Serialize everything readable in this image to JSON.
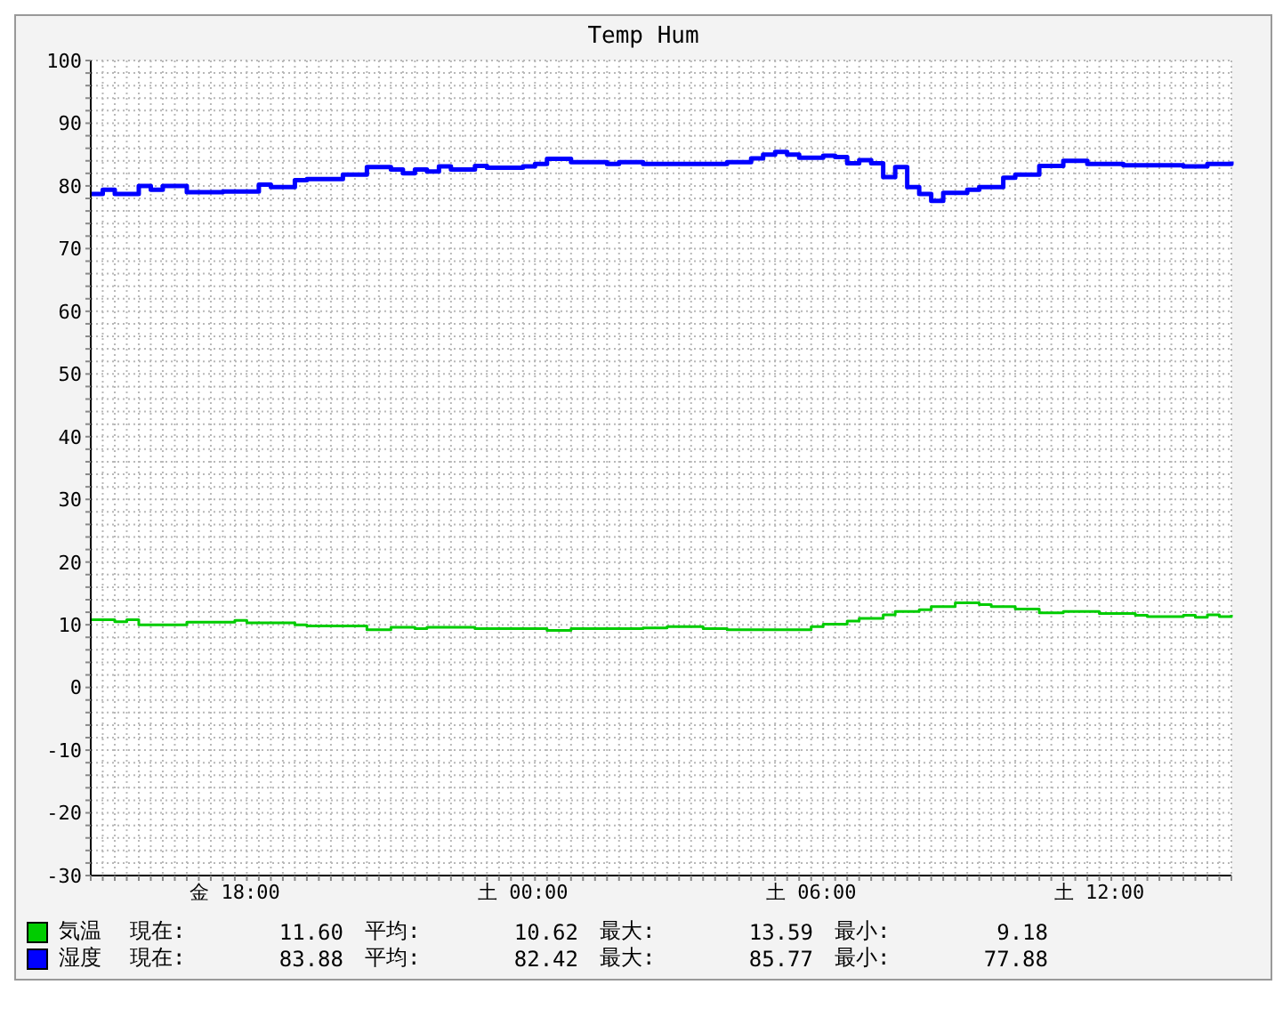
{
  "chart_data": {
    "type": "step",
    "title": "Temp Hum",
    "legend": "bottom",
    "grid": true,
    "categories": [
      null,
      null,
      null,
      null,
      null,
      null,
      null,
      null,
      null,
      null,
      null,
      null,
      "金 18:00",
      null,
      null,
      null,
      null,
      null,
      null,
      null,
      null,
      null,
      null,
      null,
      null,
      null,
      null,
      null,
      null,
      null,
      null,
      null,
      null,
      null,
      null,
      null,
      "土 00:00",
      null,
      null,
      null,
      null,
      null,
      null,
      null,
      null,
      null,
      null,
      null,
      null,
      null,
      null,
      null,
      null,
      null,
      null,
      null,
      null,
      null,
      null,
      null,
      "土 06:00",
      null,
      null,
      null,
      null,
      null,
      null,
      null,
      null,
      null,
      null,
      null,
      null,
      null,
      null,
      null,
      null,
      null,
      null,
      null,
      null,
      null,
      null,
      null,
      "土 12:00",
      null,
      null,
      null,
      null,
      null,
      null,
      null,
      null,
      null,
      null,
      null
    ],
    "ylim": [
      -30,
      100
    ],
    "yticks": [
      -30,
      {
        "value": -28,
        "label": null
      },
      {
        "value": -26,
        "label": null
      },
      {
        "value": -24,
        "label": null
      },
      {
        "value": -22,
        "label": null
      },
      -20,
      {
        "value": -18,
        "label": null
      },
      {
        "value": -16,
        "label": null
      },
      {
        "value": -14,
        "label": null
      },
      {
        "value": -12,
        "label": null
      },
      -10,
      {
        "value": -8,
        "label": null
      },
      {
        "value": -6,
        "label": null
      },
      {
        "value": -4,
        "label": null
      },
      {
        "value": -2,
        "label": null
      },
      0,
      {
        "value": 2,
        "label": null
      },
      {
        "value": 4,
        "label": null
      },
      {
        "value": 6,
        "label": null
      },
      {
        "value": 8,
        "label": null
      },
      10,
      {
        "value": 12,
        "label": null
      },
      {
        "value": 14,
        "label": null
      },
      {
        "value": 16,
        "label": null
      },
      {
        "value": 18,
        "label": null
      },
      20,
      {
        "value": 22,
        "label": null
      },
      {
        "value": 24,
        "label": null
      },
      {
        "value": 26,
        "label": null
      },
      {
        "value": 28,
        "label": null
      },
      30,
      {
        "value": 32,
        "label": null
      },
      {
        "value": 34,
        "label": null
      },
      {
        "value": 36,
        "label": null
      },
      {
        "value": 38,
        "label": null
      },
      40,
      {
        "value": 42,
        "label": null
      },
      {
        "value": 44,
        "label": null
      },
      {
        "value": 46,
        "label": null
      },
      {
        "value": 48,
        "label": null
      },
      50,
      {
        "value": 52,
        "label": null
      },
      {
        "value": 54,
        "label": null
      },
      {
        "value": 56,
        "label": null
      },
      {
        "value": 58,
        "label": null
      },
      60,
      {
        "value": 62,
        "label": null
      },
      {
        "value": 64,
        "label": null
      },
      {
        "value": 66,
        "label": null
      },
      {
        "value": 68,
        "label": null
      },
      70,
      {
        "value": 72,
        "label": null
      },
      {
        "value": 74,
        "label": null
      },
      {
        "value": 76,
        "label": null
      },
      {
        "value": 78,
        "label": null
      },
      80,
      {
        "value": 82,
        "label": null
      },
      {
        "value": 84,
        "label": null
      },
      {
        "value": 86,
        "label": null
      },
      {
        "value": 88,
        "label": null
      },
      90,
      {
        "value": 92,
        "label": null
      },
      {
        "value": 94,
        "label": null
      },
      {
        "value": 96,
        "label": null
      },
      {
        "value": 98,
        "label": null
      },
      100
    ],
    "series": [
      {
        "name": "気温",
        "color": "#00cc00",
        "values": [
          10.8,
          10.8,
          10.5,
          10.8,
          10.0,
          10.0,
          10.0,
          10.0,
          10.4,
          10.4,
          10.4,
          10.4,
          10.7,
          10.3,
          10.3,
          10.3,
          10.3,
          10.0,
          9.8,
          9.8,
          9.8,
          9.8,
          9.8,
          9.2,
          9.2,
          9.6,
          9.6,
          9.4,
          9.6,
          9.6,
          9.6,
          9.6,
          9.4,
          9.4,
          9.4,
          9.4,
          9.4,
          9.4,
          9.1,
          9.1,
          9.4,
          9.4,
          9.4,
          9.4,
          9.4,
          9.4,
          9.5,
          9.5,
          9.7,
          9.7,
          9.7,
          9.4,
          9.4,
          9.2,
          9.2,
          9.2,
          9.2,
          9.2,
          9.2,
          9.2,
          9.7,
          10.1,
          10.1,
          10.6,
          11.0,
          11.0,
          11.6,
          12.1,
          12.1,
          12.4,
          12.9,
          12.9,
          13.5,
          13.5,
          13.2,
          12.9,
          12.9,
          12.5,
          12.5,
          11.9,
          11.9,
          12.1,
          12.1,
          12.1,
          11.8,
          11.8,
          11.8,
          11.5,
          11.3,
          11.3,
          11.3,
          11.5,
          11.2,
          11.6,
          11.3,
          11.6
        ]
      },
      {
        "name": "湿度",
        "color": "#0000ff",
        "values": [
          78.7,
          79.4,
          78.7,
          78.7,
          80.0,
          79.4,
          80.0,
          80.0,
          79.0,
          79.0,
          79.0,
          79.1,
          79.1,
          79.1,
          80.2,
          79.8,
          79.8,
          80.9,
          81.1,
          81.1,
          81.1,
          81.8,
          81.8,
          83.0,
          83.0,
          82.6,
          82.0,
          82.6,
          82.3,
          83.1,
          82.6,
          82.6,
          83.2,
          82.9,
          82.9,
          82.9,
          83.1,
          83.5,
          84.3,
          84.3,
          83.8,
          83.8,
          83.8,
          83.5,
          83.8,
          83.8,
          83.5,
          83.5,
          83.5,
          83.5,
          83.5,
          83.5,
          83.5,
          83.8,
          83.8,
          84.4,
          85.0,
          85.4,
          85.0,
          84.5,
          84.5,
          84.8,
          84.6,
          83.6,
          84.1,
          83.6,
          81.4,
          83.0,
          79.8,
          78.7,
          77.6,
          78.9,
          78.9,
          79.4,
          79.8,
          79.8,
          81.3,
          81.8,
          81.8,
          83.2,
          83.2,
          84.0,
          84.0,
          83.5,
          83.5,
          83.5,
          83.3,
          83.3,
          83.3,
          83.3,
          83.3,
          83.1,
          83.1,
          83.5,
          83.5,
          83.9
        ]
      }
    ],
    "annotations": [
      "現在:",
      "11.60",
      "平均:",
      "10.62",
      "最大:",
      "13.59",
      "最小:",
      "9.18",
      "現在:",
      "83.88",
      "平均:",
      "82.42",
      "最大:",
      "85.77",
      "最小:",
      "77.88"
    ]
  }
}
